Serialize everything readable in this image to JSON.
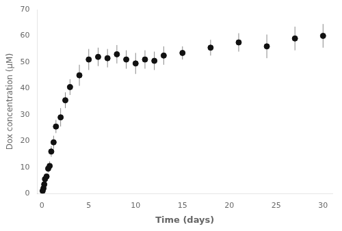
{
  "chart_data": {
    "type": "scatter",
    "xlabel": "Time (days)",
    "ylabel": "Dox concentration (μM)",
    "x": [
      0.08,
      0.17,
      0.25,
      0.33,
      0.5,
      0.67,
      0.83,
      1.0,
      1.25,
      1.5,
      2.0,
      2.5,
      3.0,
      4.0,
      5.0,
      6.0,
      7.0,
      8.0,
      9.0,
      10.0,
      11.0,
      12.0,
      13.0,
      15.0,
      18.0,
      21.0,
      24.0,
      27.0,
      30.0
    ],
    "values": [
      1.0,
      2.0,
      3.5,
      5.5,
      6.5,
      9.5,
      10.5,
      16.0,
      19.5,
      25.5,
      29.0,
      35.5,
      40.5,
      45.0,
      51.0,
      52.0,
      51.5,
      53.0,
      51.0,
      49.5,
      51.0,
      50.5,
      52.5,
      53.5,
      55.5,
      57.5,
      56.0,
      59.0,
      60.0
    ],
    "yerr": [
      0.3,
      0.3,
      0.5,
      0.8,
      1.0,
      1.5,
      1.8,
      2.0,
      2.5,
      2.5,
      3.5,
      3.0,
      3.0,
      4.0,
      4.0,
      3.5,
      3.5,
      3.5,
      3.5,
      4.0,
      3.5,
      3.5,
      3.5,
      2.5,
      3.0,
      3.5,
      4.5,
      4.5,
      4.5
    ],
    "color": "#111111",
    "xlim": [
      -0.5,
      31
    ],
    "ylim": [
      0,
      70
    ],
    "xticks": [
      0,
      5,
      10,
      15,
      20,
      25,
      30
    ],
    "yticks": [
      0,
      10,
      20,
      30,
      40,
      50,
      60,
      70
    ],
    "grid": false
  }
}
